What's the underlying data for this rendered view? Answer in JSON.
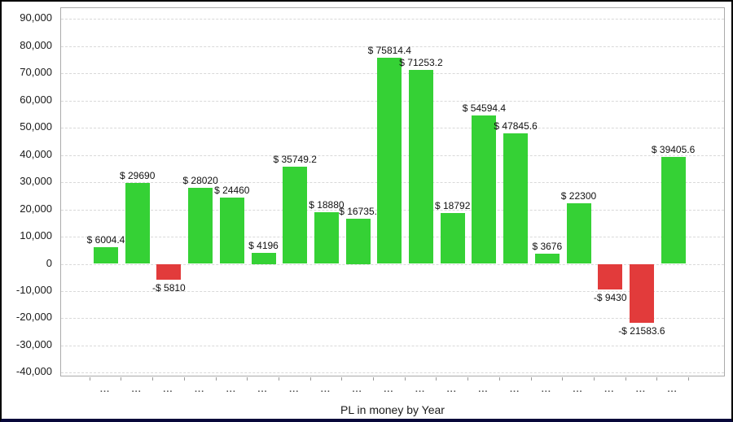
{
  "window": {
    "background": "#ffffff",
    "border_color": "#000000",
    "bottom_bar_color": "#08083a"
  },
  "chart_data": {
    "type": "bar",
    "title": "PL in money by Year",
    "xlabel": "",
    "ylabel": "",
    "ylim": [
      -40000,
      90000
    ],
    "grid": "horizontal-dashed",
    "legend": "none",
    "y_ticks": [
      {
        "label": "90,000",
        "value": 90000
      },
      {
        "label": "80,000",
        "value": 80000
      },
      {
        "label": "70,000",
        "value": 70000
      },
      {
        "label": "60,000",
        "value": 60000
      },
      {
        "label": "50,000",
        "value": 50000
      },
      {
        "label": "40,000",
        "value": 40000
      },
      {
        "label": "30,000",
        "value": 30000
      },
      {
        "label": "20,000",
        "value": 20000
      },
      {
        "label": "10,000",
        "value": 10000
      },
      {
        "label": "0",
        "value": 0
      },
      {
        "label": "-10,000",
        "value": -10000
      },
      {
        "label": "-20,000",
        "value": -20000
      },
      {
        "label": "-30,000",
        "value": -30000
      },
      {
        "label": "-40,000",
        "value": -40000
      }
    ],
    "categories": [
      "...",
      "...",
      "...",
      "...",
      "...",
      "...",
      "...",
      "...",
      "...",
      "...",
      "...",
      "...",
      "...",
      "...",
      "...",
      "...",
      "...",
      "...",
      "..."
    ],
    "bars": [
      {
        "label": "$ 6004.4",
        "value": 6004.4
      },
      {
        "label": "$ 29690",
        "value": 29690
      },
      {
        "label": "-$ 5810",
        "value": -5810
      },
      {
        "label": "$ 28020",
        "value": 28020
      },
      {
        "label": "$ 24460",
        "value": 24460
      },
      {
        "label": "$ 4196",
        "value": 4196
      },
      {
        "label": "$ 35749.2",
        "value": 35749.2
      },
      {
        "label": "$ 18880",
        "value": 18880
      },
      {
        "label": "$ 16735.",
        "value": 16735
      },
      {
        "label": "$ 75814.4",
        "value": 75814.4
      },
      {
        "label": "$ 71253.2",
        "value": 71253.2
      },
      {
        "label": "$ 18792",
        "value": 18792
      },
      {
        "label": "$ 54594.4",
        "value": 54594.4
      },
      {
        "label": "$ 47845.6",
        "value": 47845.6
      },
      {
        "label": "$ 3676",
        "value": 3676
      },
      {
        "label": "$ 22300",
        "value": 22300
      },
      {
        "label": "-$ 9430",
        "value": -9430
      },
      {
        "label": "-$ 21583.6",
        "value": -21583.6
      },
      {
        "label": "$ 39405.6",
        "value": 39405.6
      }
    ],
    "colors": {
      "positive_bar": "#35d135",
      "negative_bar": "#e23b3b",
      "gridline": "#d9d9d9",
      "axis_frame": "#ababab",
      "label_text": "#111111"
    }
  }
}
